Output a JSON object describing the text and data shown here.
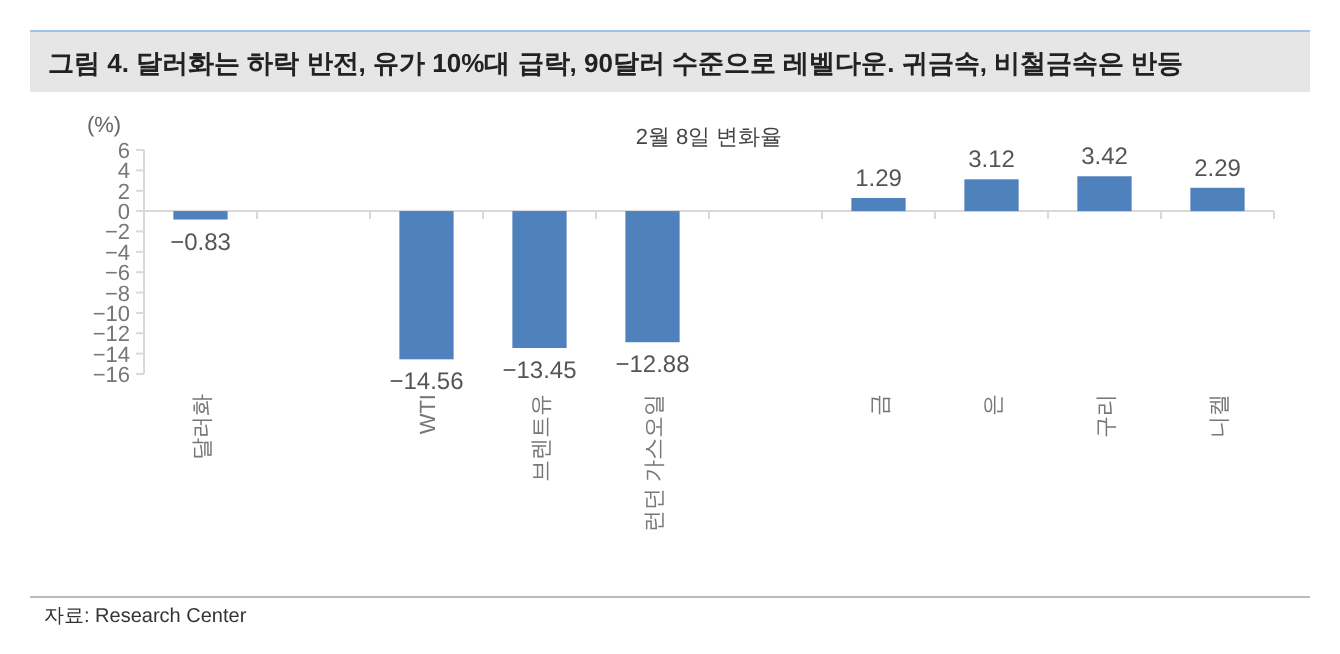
{
  "chart_data": {
    "type": "bar",
    "title": "그림 4. 달러화는 하락 반전, 유가 10%대 급락, 90달러 수준으로 레벨다운. 귀금속, 비철금속은 반등",
    "subtitle": "2월 8일 변화율",
    "ylabel": "(%)",
    "categories": [
      "달러화",
      null,
      "WTI",
      "브렌트유",
      "런던 가스오일",
      null,
      "금",
      "은",
      "구리",
      "니켈"
    ],
    "values": [
      -0.83,
      null,
      -14.56,
      -13.45,
      -12.88,
      null,
      1.29,
      3.12,
      3.42,
      2.29
    ],
    "color": "#4f81bd",
    "ylim": [
      -16,
      6
    ],
    "yticks": [
      6,
      4,
      2,
      0,
      -2,
      -4,
      -6,
      -8,
      -10,
      -12,
      -14,
      -16
    ],
    "data_labels": true,
    "annotations": [
      "자료: Research Center"
    ]
  }
}
